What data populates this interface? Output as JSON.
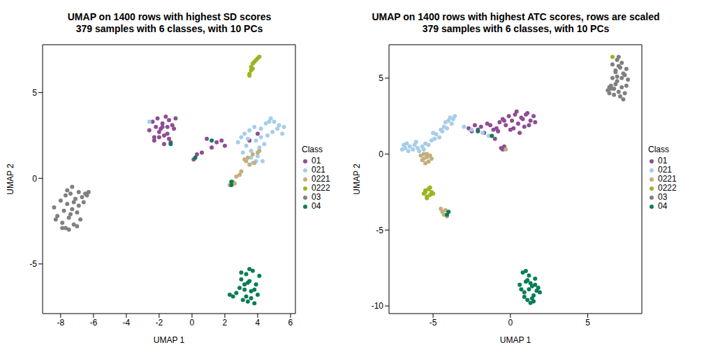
{
  "chart_data": [
    {
      "type": "scatter",
      "title": "UMAP on 1400 rows with highest SD scores\n379 samples with 6 classes, with 10 PCs",
      "x_label": "UMAP 1",
      "y_label": "UMAP 2",
      "xlim": [
        -9.1,
        6.3
      ],
      "ylim": [
        -7.9,
        7.8
      ],
      "xticks": [
        -8,
        -6,
        -4,
        -2,
        0,
        2,
        4,
        6
      ],
      "yticks": [
        -5,
        0,
        5
      ],
      "legend": "right",
      "legend_title": "Class",
      "series": [
        {
          "name": "01",
          "color": "#8E4D94",
          "x": [
            -2.6,
            -2.4,
            -2.3,
            -2.2,
            -2.1,
            -2.0,
            -1.9,
            -1.8,
            -1.7,
            -1.6,
            -1.5,
            -1.4,
            -1.3,
            -1.2,
            -1.1,
            -1.0,
            -2.0,
            -1.7,
            -1.4,
            -1.8,
            -2.3,
            -1.5,
            0.1,
            0.3,
            0.6,
            0.9,
            1.2,
            1.5,
            1.8,
            2.0,
            4.0,
            3.5
          ],
          "y": [
            2.8,
            3.3,
            2.2,
            3.0,
            3.5,
            2.4,
            2.9,
            3.2,
            2.0,
            3.6,
            2.6,
            3.4,
            2.1,
            3.1,
            2.9,
            3.5,
            2.7,
            2.5,
            2.3,
            3.0,
            2.4,
            3.0,
            1.1,
            1.4,
            1.5,
            2.3,
            1.8,
            2.1,
            2.2,
            1.9,
            2.6,
            2.2
          ]
        },
        {
          "name": "021",
          "color": "#A6CEE8",
          "x": [
            2.8,
            3.0,
            3.2,
            3.3,
            3.5,
            3.6,
            3.8,
            3.9,
            4.0,
            4.2,
            4.3,
            4.5,
            4.6,
            4.8,
            4.9,
            5.0,
            5.2,
            5.3,
            5.5,
            5.6,
            3.4,
            3.7,
            4.1,
            4.4,
            4.7,
            3.1,
            3.9,
            4.2,
            3.6,
            -2.6
          ],
          "y": [
            2.1,
            2.4,
            2.6,
            1.9,
            2.8,
            1.6,
            3.0,
            2.2,
            1.3,
            2.9,
            1.0,
            3.2,
            2.5,
            3.5,
            2.7,
            3.3,
            2.9,
            3.1,
            2.6,
            3.0,
            2.3,
            0.9,
            1.8,
            2.0,
            3.3,
            1.5,
            1.0,
            2.4,
            1.2,
            3.3
          ]
        },
        {
          "name": "0221",
          "color": "#C4AE7E",
          "x": [
            2.3,
            2.5,
            2.6,
            2.7,
            2.9,
            3.0,
            3.2,
            3.4,
            3.5,
            3.7,
            3.8,
            4.0,
            4.1,
            3.3
          ],
          "y": [
            -0.4,
            -0.2,
            -0.3,
            0.1,
            0.2,
            0.4,
            1.1,
            1.2,
            0.8,
            1.4,
            0.9,
            1.5,
            1.6,
            1.0
          ]
        },
        {
          "name": "0222",
          "color": "#9AB51E",
          "x": [
            3.5,
            3.6,
            3.6,
            3.7,
            3.7,
            3.8,
            3.9,
            4.0,
            4.1,
            3.5
          ],
          "y": [
            6.1,
            6.3,
            6.5,
            6.4,
            6.7,
            6.8,
            6.9,
            7.0,
            7.1,
            6.0
          ]
        },
        {
          "name": "03",
          "color": "#808080",
          "x": [
            -8.4,
            -8.2,
            -8.0,
            -7.9,
            -7.8,
            -7.7,
            -7.6,
            -7.5,
            -7.4,
            -7.3,
            -7.2,
            -7.1,
            -7.0,
            -6.9,
            -6.8,
            -6.7,
            -6.6,
            -6.5,
            -6.4,
            -6.3,
            -7.9,
            -7.6,
            -7.3,
            -7.5,
            -7.0,
            -8.3,
            -7.7,
            -6.9,
            -7.2,
            -7.4
          ],
          "y": [
            -1.7,
            -2.2,
            -1.3,
            -2.6,
            -1.9,
            -2.9,
            -1.5,
            -2.3,
            -0.9,
            -1.8,
            -2.7,
            -1.2,
            -2.0,
            -1.6,
            -2.4,
            -1.1,
            -1.4,
            -0.9,
            -1.0,
            -0.8,
            -2.9,
            -0.7,
            -0.5,
            -3.0,
            -2.8,
            -2.4,
            -1.0,
            -0.8,
            -1.4,
            -2.1
          ]
        },
        {
          "name": "04",
          "color": "#0B7D56",
          "x": [
            2.3,
            2.5,
            2.7,
            2.9,
            3.0,
            3.1,
            3.2,
            3.3,
            3.4,
            3.5,
            3.6,
            3.7,
            3.8,
            3.9,
            4.0,
            4.1,
            3.0,
            3.3,
            3.5,
            3.8,
            3.2,
            3.6,
            3.4,
            2.4,
            2.4,
            0.2,
            1.2,
            -1.3
          ],
          "y": [
            -6.8,
            -6.9,
            -6.7,
            -6.4,
            -5.9,
            -7.1,
            -6.5,
            -5.6,
            -7.2,
            -6.0,
            -6.6,
            -5.4,
            -7.3,
            -6.2,
            -6.8,
            -5.7,
            -5.5,
            -6.9,
            -5.3,
            -6.5,
            -6.2,
            -7.0,
            -6.1,
            -0.4,
            -0.2,
            1.2,
            2.2,
            2.0
          ]
        }
      ]
    },
    {
      "type": "scatter",
      "title": "UMAP on 1400 rows with highest ATC scores, rows are scaled\n379 samples with 6 classes, with 10 PCs",
      "x_label": "UMAP 1",
      "y_label": "UMAP 2",
      "xlim": [
        -7.85,
        8.5
      ],
      "ylim": [
        -10.5,
        7.2
      ],
      "xticks": [
        -5,
        0,
        5
      ],
      "yticks": [
        -10,
        -5,
        0,
        5
      ],
      "legend": "right",
      "legend_title": "Class",
      "series": [
        {
          "name": "01",
          "color": "#8E4D94",
          "x": [
            -2.7,
            -2.5,
            -2.3,
            -2.1,
            -1.9,
            -1.7,
            -1.5,
            -1.3,
            -1.1,
            -0.9,
            -0.7,
            -0.5,
            -0.3,
            -0.1,
            0.1,
            0.3,
            0.5,
            0.7,
            0.9,
            1.1,
            1.3,
            1.5,
            1.6,
            0.0,
            0.4,
            0.8,
            1.2,
            -0.4,
            -0.8,
            0.2,
            0.6,
            1.0,
            -0.6,
            -0.5,
            -0.4,
            -1.0
          ],
          "y": [
            1.7,
            1.5,
            1.9,
            1.6,
            1.8,
            1.4,
            2.0,
            1.9,
            1.6,
            1.7,
            2.1,
            2.3,
            1.9,
            2.5,
            2.2,
            2.6,
            2.0,
            2.4,
            1.8,
            2.7,
            2.2,
            2.5,
            2.1,
            1.6,
            2.8,
            2.3,
            1.9,
            2.2,
            1.5,
            1.7,
            1.4,
            2.6,
            0.4,
            0.3,
            0.5,
            1.0
          ]
        },
        {
          "name": "021",
          "color": "#A6CEE8",
          "x": [
            -7.0,
            -6.9,
            -6.8,
            -6.7,
            -6.6,
            -6.5,
            -6.3,
            -6.2,
            -6.0,
            -5.9,
            -5.7,
            -5.5,
            -5.3,
            -5.1,
            -4.9,
            -4.8,
            -4.6,
            -4.4,
            -4.3,
            -4.1,
            -4.0,
            -3.9,
            -3.8,
            -3.6,
            -5.0,
            -4.5,
            -4.2,
            -6.1,
            -5.6,
            -3.0,
            -2.5,
            -1.8,
            -1.4,
            -3.7
          ],
          "y": [
            0.3,
            0.6,
            0.4,
            0.7,
            0.2,
            0.5,
            0.3,
            0.6,
            0.4,
            0.2,
            0.5,
            0.7,
            0.6,
            0.9,
            1.0,
            1.3,
            1.1,
            1.5,
            1.8,
            1.7,
            2.2,
            2.4,
            2.0,
            2.5,
            1.4,
            1.6,
            2.1,
            0.8,
            0.3,
            1.8,
            1.6,
            1.4,
            1.2,
            2.3
          ]
        },
        {
          "name": "0221",
          "color": "#C4AE7E",
          "x": [
            -5.8,
            -5.7,
            -5.6,
            -5.5,
            -5.4,
            -5.3,
            -5.2,
            -5.1,
            -5.6,
            -5.4,
            -4.5,
            -4.4,
            -4.3,
            -4.2,
            -4.1,
            -0.3
          ],
          "y": [
            -0.1,
            -0.4,
            0.0,
            -0.6,
            -0.2,
            -0.5,
            -0.1,
            -0.3,
            -0.3,
            0.0,
            -3.6,
            -3.8,
            -4.0,
            -3.7,
            -4.1,
            0.3
          ]
        },
        {
          "name": "0222",
          "color": "#9AB51E",
          "x": [
            -5.6,
            -5.5,
            -5.4,
            -5.3,
            -5.2,
            -5.1,
            -5.0,
            -5.4,
            -5.2,
            -5.5,
            6.6
          ],
          "y": [
            -2.6,
            -2.4,
            -2.8,
            -2.3,
            -2.7,
            -2.5,
            -2.6,
            -2.9,
            -2.2,
            -2.5,
            6.4
          ]
        },
        {
          "name": "03",
          "color": "#808080",
          "x": [
            6.3,
            6.4,
            6.5,
            6.6,
            6.7,
            6.8,
            6.9,
            7.0,
            7.1,
            7.2,
            7.3,
            7.4,
            7.5,
            7.6,
            6.6,
            6.9,
            7.2,
            7.0,
            6.8,
            7.3,
            6.5,
            7.1,
            6.7,
            7.4,
            6.9,
            7.0,
            7.5,
            6.4,
            7.2,
            6.8
          ],
          "y": [
            4.2,
            4.0,
            4.5,
            5.0,
            4.3,
            5.4,
            4.8,
            5.8,
            3.8,
            4.4,
            3.6,
            5.2,
            5.6,
            4.9,
            5.9,
            6.2,
            6.0,
            4.1,
            4.6,
            5.3,
            4.3,
            5.7,
            3.9,
            4.0,
            5.1,
            6.4,
            4.5,
            4.4,
            5.0,
            5.5
          ]
        },
        {
          "name": "04",
          "color": "#0B7D56",
          "x": [
            0.6,
            0.7,
            0.8,
            0.9,
            1.0,
            1.1,
            1.2,
            1.3,
            1.4,
            1.5,
            1.6,
            1.7,
            1.8,
            1.9,
            1.0,
            1.3,
            1.5,
            0.9,
            1.2,
            1.6,
            1.1,
            -4.0,
            -4.1,
            -2.1,
            -1.2,
            1.4
          ],
          "y": [
            -8.6,
            -8.9,
            -7.8,
            -9.1,
            -8.4,
            -9.6,
            -8.0,
            -9.8,
            -8.7,
            -9.3,
            -8.2,
            -9.0,
            -8.8,
            -9.1,
            -7.7,
            -8.5,
            -9.7,
            -9.4,
            -8.9,
            -8.6,
            -8.3,
            -3.8,
            -4.0,
            1.5,
            1.2,
            -9.5
          ]
        }
      ]
    }
  ]
}
